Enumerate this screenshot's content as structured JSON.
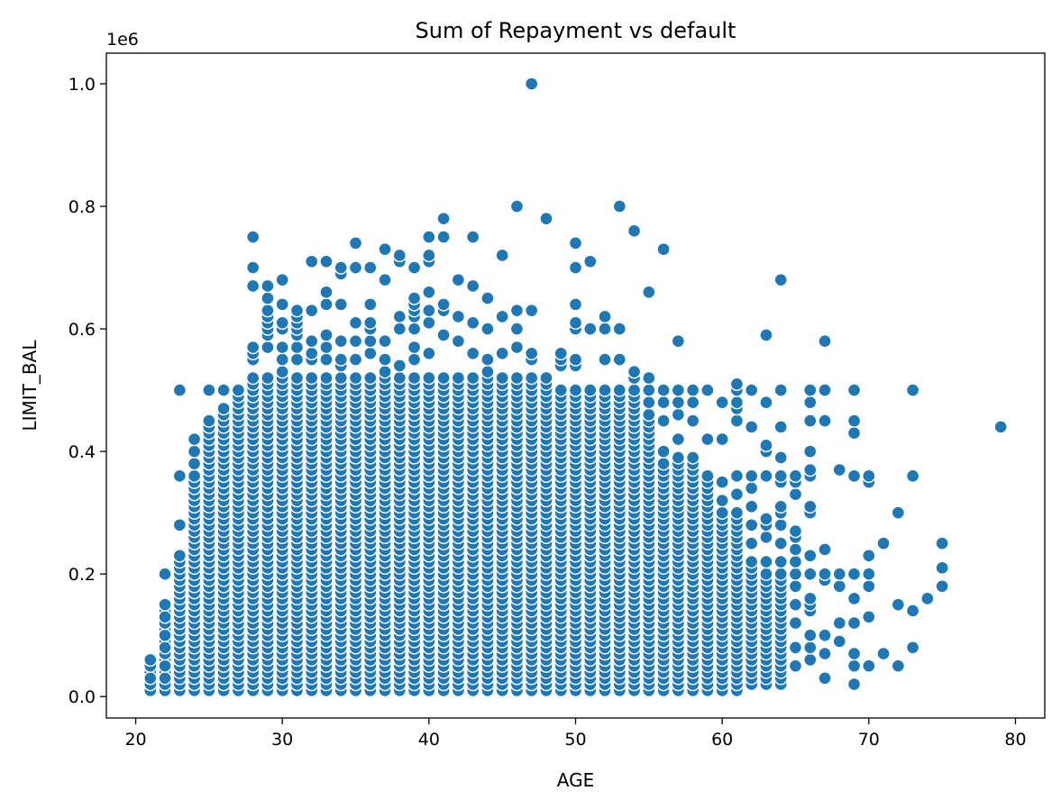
{
  "chart_data": {
    "type": "scatter",
    "title": "Sum of Repayment vs default",
    "xlabel": "AGE",
    "ylabel": "LIMIT_BAL",
    "y_offset_text": "1e6",
    "xlim": [
      18,
      82
    ],
    "ylim": [
      -0.035,
      1.05
    ],
    "y_scale_factor": 1000000,
    "x_ticks": [
      20,
      30,
      40,
      50,
      60,
      70,
      80
    ],
    "x_tick_labels": [
      "20",
      "30",
      "40",
      "50",
      "60",
      "70",
      "80"
    ],
    "y_ticks": [
      0.0,
      0.2,
      0.4,
      0.6,
      0.8,
      1.0
    ],
    "y_tick_labels": [
      "0.0",
      "0.2",
      "0.4",
      "0.6",
      "0.8",
      "1.0"
    ],
    "grid": false,
    "marker_color": "#1f77b4",
    "bulk_value_step": 0.01,
    "bulk_range_by_age": [
      [
        21,
        0.01,
        0.06
      ],
      [
        22,
        0.01,
        0.15
      ],
      [
        23,
        0.01,
        0.23
      ],
      [
        24,
        0.01,
        0.36
      ],
      [
        25,
        0.01,
        0.45
      ],
      [
        26,
        0.01,
        0.47
      ],
      [
        27,
        0.01,
        0.5
      ],
      [
        28,
        0.01,
        0.52
      ],
      [
        29,
        0.01,
        0.52
      ],
      [
        30,
        0.01,
        0.53
      ],
      [
        31,
        0.01,
        0.52
      ],
      [
        32,
        0.01,
        0.52
      ],
      [
        33,
        0.01,
        0.52
      ],
      [
        34,
        0.01,
        0.52
      ],
      [
        35,
        0.01,
        0.52
      ],
      [
        36,
        0.01,
        0.52
      ],
      [
        37,
        0.01,
        0.52
      ],
      [
        38,
        0.01,
        0.52
      ],
      [
        39,
        0.01,
        0.52
      ],
      [
        40,
        0.01,
        0.52
      ],
      [
        41,
        0.01,
        0.52
      ],
      [
        42,
        0.01,
        0.52
      ],
      [
        43,
        0.01,
        0.52
      ],
      [
        44,
        0.01,
        0.52
      ],
      [
        45,
        0.01,
        0.52
      ],
      [
        46,
        0.01,
        0.52
      ],
      [
        47,
        0.01,
        0.52
      ],
      [
        48,
        0.01,
        0.52
      ],
      [
        49,
        0.01,
        0.5
      ],
      [
        50,
        0.01,
        0.5
      ],
      [
        51,
        0.01,
        0.5
      ],
      [
        52,
        0.01,
        0.5
      ],
      [
        53,
        0.01,
        0.5
      ],
      [
        54,
        0.01,
        0.5
      ],
      [
        55,
        0.01,
        0.46
      ],
      [
        56,
        0.01,
        0.38
      ],
      [
        57,
        0.01,
        0.39
      ],
      [
        58,
        0.01,
        0.39
      ],
      [
        59,
        0.01,
        0.36
      ],
      [
        60,
        0.01,
        0.3
      ],
      [
        61,
        0.01,
        0.3
      ],
      [
        62,
        0.02,
        0.22
      ],
      [
        63,
        0.02,
        0.2
      ],
      [
        64,
        0.02,
        0.2
      ]
    ],
    "points": [
      [
        21,
        0.01
      ],
      [
        21,
        0.02
      ],
      [
        21,
        0.03
      ],
      [
        21,
        0.05
      ],
      [
        21,
        0.06
      ],
      [
        22,
        0.01
      ],
      [
        22,
        0.02
      ],
      [
        22,
        0.03
      ],
      [
        22,
        0.05
      ],
      [
        22,
        0.07
      ],
      [
        22,
        0.08
      ],
      [
        22,
        0.1
      ],
      [
        22,
        0.12
      ],
      [
        22,
        0.13
      ],
      [
        22,
        0.15
      ],
      [
        22,
        0.2
      ],
      [
        23,
        0.28
      ],
      [
        23,
        0.36
      ],
      [
        23,
        0.5
      ],
      [
        24,
        0.38
      ],
      [
        24,
        0.4
      ],
      [
        24,
        0.42
      ],
      [
        25,
        0.5
      ],
      [
        26,
        0.5
      ],
      [
        27,
        0.5
      ],
      [
        28,
        0.55
      ],
      [
        28,
        0.56
      ],
      [
        28,
        0.57
      ],
      [
        28,
        0.67
      ],
      [
        28,
        0.7
      ],
      [
        28,
        0.75
      ],
      [
        29,
        0.57
      ],
      [
        29,
        0.59
      ],
      [
        29,
        0.6
      ],
      [
        29,
        0.61
      ],
      [
        29,
        0.62
      ],
      [
        29,
        0.63
      ],
      [
        29,
        0.65
      ],
      [
        29,
        0.67
      ],
      [
        30,
        0.55
      ],
      [
        30,
        0.57
      ],
      [
        30,
        0.6
      ],
      [
        30,
        0.61
      ],
      [
        30,
        0.64
      ],
      [
        30,
        0.68
      ],
      [
        31,
        0.55
      ],
      [
        31,
        0.57
      ],
      [
        31,
        0.59
      ],
      [
        31,
        0.6
      ],
      [
        31,
        0.61
      ],
      [
        31,
        0.62
      ],
      [
        31,
        0.63
      ],
      [
        32,
        0.55
      ],
      [
        32,
        0.56
      ],
      [
        32,
        0.58
      ],
      [
        32,
        0.63
      ],
      [
        32,
        0.71
      ],
      [
        33,
        0.55
      ],
      [
        33,
        0.57
      ],
      [
        33,
        0.59
      ],
      [
        33,
        0.64
      ],
      [
        33,
        0.66
      ],
      [
        33,
        0.71
      ],
      [
        34,
        0.54
      ],
      [
        34,
        0.55
      ],
      [
        34,
        0.58
      ],
      [
        34,
        0.64
      ],
      [
        34,
        0.69
      ],
      [
        34,
        0.7
      ],
      [
        35,
        0.55
      ],
      [
        35,
        0.58
      ],
      [
        35,
        0.61
      ],
      [
        35,
        0.7
      ],
      [
        35,
        0.74
      ],
      [
        36,
        0.56
      ],
      [
        36,
        0.58
      ],
      [
        36,
        0.6
      ],
      [
        36,
        0.61
      ],
      [
        36,
        0.64
      ],
      [
        36,
        0.7
      ],
      [
        37,
        0.53
      ],
      [
        37,
        0.55
      ],
      [
        37,
        0.58
      ],
      [
        37,
        0.68
      ],
      [
        37,
        0.73
      ],
      [
        38,
        0.54
      ],
      [
        38,
        0.6
      ],
      [
        38,
        0.62
      ],
      [
        38,
        0.71
      ],
      [
        38,
        0.72
      ],
      [
        39,
        0.55
      ],
      [
        39,
        0.57
      ],
      [
        39,
        0.6
      ],
      [
        39,
        0.62
      ],
      [
        39,
        0.63
      ],
      [
        39,
        0.64
      ],
      [
        39,
        0.65
      ],
      [
        39,
        0.7
      ],
      [
        40,
        0.56
      ],
      [
        40,
        0.61
      ],
      [
        40,
        0.63
      ],
      [
        40,
        0.66
      ],
      [
        40,
        0.71
      ],
      [
        40,
        0.72
      ],
      [
        40,
        0.75
      ],
      [
        41,
        0.59
      ],
      [
        41,
        0.63
      ],
      [
        41,
        0.64
      ],
      [
        41,
        0.75
      ],
      [
        41,
        0.78
      ],
      [
        42,
        0.58
      ],
      [
        42,
        0.62
      ],
      [
        42,
        0.68
      ],
      [
        43,
        0.56
      ],
      [
        43,
        0.61
      ],
      [
        43,
        0.67
      ],
      [
        43,
        0.75
      ],
      [
        44,
        0.53
      ],
      [
        44,
        0.55
      ],
      [
        44,
        0.6
      ],
      [
        44,
        0.65
      ],
      [
        45,
        0.56
      ],
      [
        45,
        0.62
      ],
      [
        45,
        0.72
      ],
      [
        46,
        0.57
      ],
      [
        46,
        0.6
      ],
      [
        46,
        0.63
      ],
      [
        46,
        0.8
      ],
      [
        47,
        0.55
      ],
      [
        47,
        0.56
      ],
      [
        47,
        0.63
      ],
      [
        47,
        1.0
      ],
      [
        48,
        0.78
      ],
      [
        49,
        0.54
      ],
      [
        49,
        0.55
      ],
      [
        49,
        0.56
      ],
      [
        50,
        0.54
      ],
      [
        50,
        0.55
      ],
      [
        50,
        0.6
      ],
      [
        50,
        0.61
      ],
      [
        50,
        0.64
      ],
      [
        50,
        0.7
      ],
      [
        50,
        0.74
      ],
      [
        51,
        0.6
      ],
      [
        51,
        0.71
      ],
      [
        52,
        0.55
      ],
      [
        52,
        0.6
      ],
      [
        52,
        0.62
      ],
      [
        53,
        0.55
      ],
      [
        53,
        0.6
      ],
      [
        53,
        0.8
      ],
      [
        54,
        0.52
      ],
      [
        54,
        0.53
      ],
      [
        54,
        0.76
      ],
      [
        55,
        0.48
      ],
      [
        55,
        0.5
      ],
      [
        55,
        0.52
      ],
      [
        55,
        0.66
      ],
      [
        56,
        0.4
      ],
      [
        56,
        0.45
      ],
      [
        56,
        0.48
      ],
      [
        56,
        0.5
      ],
      [
        56,
        0.73
      ],
      [
        57,
        0.42
      ],
      [
        57,
        0.46
      ],
      [
        57,
        0.48
      ],
      [
        57,
        0.5
      ],
      [
        57,
        0.58
      ],
      [
        58,
        0.45
      ],
      [
        58,
        0.48
      ],
      [
        58,
        0.5
      ],
      [
        59,
        0.42
      ],
      [
        59,
        0.5
      ],
      [
        60,
        0.32
      ],
      [
        60,
        0.35
      ],
      [
        60,
        0.42
      ],
      [
        60,
        0.48
      ],
      [
        61,
        0.33
      ],
      [
        61,
        0.36
      ],
      [
        61,
        0.45
      ],
      [
        61,
        0.47
      ],
      [
        61,
        0.48
      ],
      [
        61,
        0.5
      ],
      [
        61,
        0.51
      ],
      [
        62,
        0.25
      ],
      [
        62,
        0.28
      ],
      [
        62,
        0.31
      ],
      [
        62,
        0.34
      ],
      [
        62,
        0.36
      ],
      [
        62,
        0.44
      ],
      [
        62,
        0.5
      ],
      [
        63,
        0.22
      ],
      [
        63,
        0.26
      ],
      [
        63,
        0.28
      ],
      [
        63,
        0.29
      ],
      [
        63,
        0.36
      ],
      [
        63,
        0.4
      ],
      [
        63,
        0.41
      ],
      [
        63,
        0.48
      ],
      [
        63,
        0.59
      ],
      [
        64,
        0.22
      ],
      [
        64,
        0.25
      ],
      [
        64,
        0.28
      ],
      [
        64,
        0.3
      ],
      [
        64,
        0.31
      ],
      [
        64,
        0.35
      ],
      [
        64,
        0.36
      ],
      [
        64,
        0.39
      ],
      [
        64,
        0.44
      ],
      [
        64,
        0.5
      ],
      [
        64,
        0.68
      ],
      [
        65,
        0.05
      ],
      [
        65,
        0.08
      ],
      [
        65,
        0.12
      ],
      [
        65,
        0.15
      ],
      [
        65,
        0.18
      ],
      [
        65,
        0.2
      ],
      [
        65,
        0.22
      ],
      [
        65,
        0.24
      ],
      [
        65,
        0.26
      ],
      [
        65,
        0.27
      ],
      [
        65,
        0.33
      ],
      [
        65,
        0.35
      ],
      [
        65,
        0.36
      ],
      [
        66,
        0.06
      ],
      [
        66,
        0.08
      ],
      [
        66,
        0.1
      ],
      [
        66,
        0.14
      ],
      [
        66,
        0.15
      ],
      [
        66,
        0.16
      ],
      [
        66,
        0.2
      ],
      [
        66,
        0.23
      ],
      [
        66,
        0.3
      ],
      [
        66,
        0.31
      ],
      [
        66,
        0.36
      ],
      [
        66,
        0.37
      ],
      [
        66,
        0.4
      ],
      [
        66,
        0.45
      ],
      [
        66,
        0.48
      ],
      [
        66,
        0.5
      ],
      [
        67,
        0.03
      ],
      [
        67,
        0.07
      ],
      [
        67,
        0.1
      ],
      [
        67,
        0.19
      ],
      [
        67,
        0.2
      ],
      [
        67,
        0.24
      ],
      [
        67,
        0.45
      ],
      [
        67,
        0.5
      ],
      [
        67,
        0.58
      ],
      [
        68,
        0.09
      ],
      [
        68,
        0.12
      ],
      [
        68,
        0.18
      ],
      [
        68,
        0.2
      ],
      [
        68,
        0.37
      ],
      [
        69,
        0.02
      ],
      [
        69,
        0.05
      ],
      [
        69,
        0.07
      ],
      [
        69,
        0.12
      ],
      [
        69,
        0.16
      ],
      [
        69,
        0.2
      ],
      [
        69,
        0.36
      ],
      [
        69,
        0.43
      ],
      [
        69,
        0.45
      ],
      [
        69,
        0.5
      ],
      [
        70,
        0.05
      ],
      [
        70,
        0.13
      ],
      [
        70,
        0.18
      ],
      [
        70,
        0.2
      ],
      [
        70,
        0.23
      ],
      [
        70,
        0.35
      ],
      [
        70,
        0.36
      ],
      [
        71,
        0.07
      ],
      [
        71,
        0.25
      ],
      [
        72,
        0.05
      ],
      [
        72,
        0.15
      ],
      [
        72,
        0.3
      ],
      [
        73,
        0.08
      ],
      [
        73,
        0.14
      ],
      [
        73,
        0.36
      ],
      [
        73,
        0.5
      ],
      [
        74,
        0.16
      ],
      [
        75,
        0.18
      ],
      [
        75,
        0.21
      ],
      [
        75,
        0.25
      ],
      [
        79,
        0.44
      ]
    ]
  }
}
